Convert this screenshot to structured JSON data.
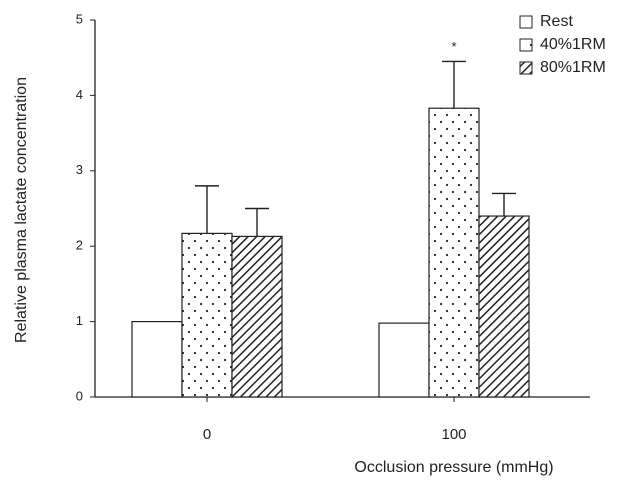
{
  "chart_data": {
    "type": "bar",
    "x_label": "Occlusion pressure (mmHg)",
    "y_label": "Relative plasma lactate concentration",
    "categories": [
      "0",
      "100"
    ],
    "series": [
      {
        "name": "Rest",
        "color": "#ffffff",
        "pattern": "none",
        "values": [
          1.0,
          0.98
        ]
      },
      {
        "name": "40%1RM",
        "color": "#ffffff",
        "pattern": "dots",
        "values": [
          2.17,
          3.83
        ],
        "errors": [
          0.63,
          0.62
        ]
      },
      {
        "name": "80%1RM",
        "color": "#ffffff",
        "pattern": "hatch",
        "values": [
          2.13,
          2.4
        ],
        "errors": [
          0.37,
          0.3
        ]
      }
    ],
    "annotations": [
      "*"
    ],
    "ylim": [
      0,
      5
    ],
    "yticks": [
      0,
      1,
      2,
      3,
      4,
      5
    ],
    "legend": "top-right",
    "grid": false
  }
}
